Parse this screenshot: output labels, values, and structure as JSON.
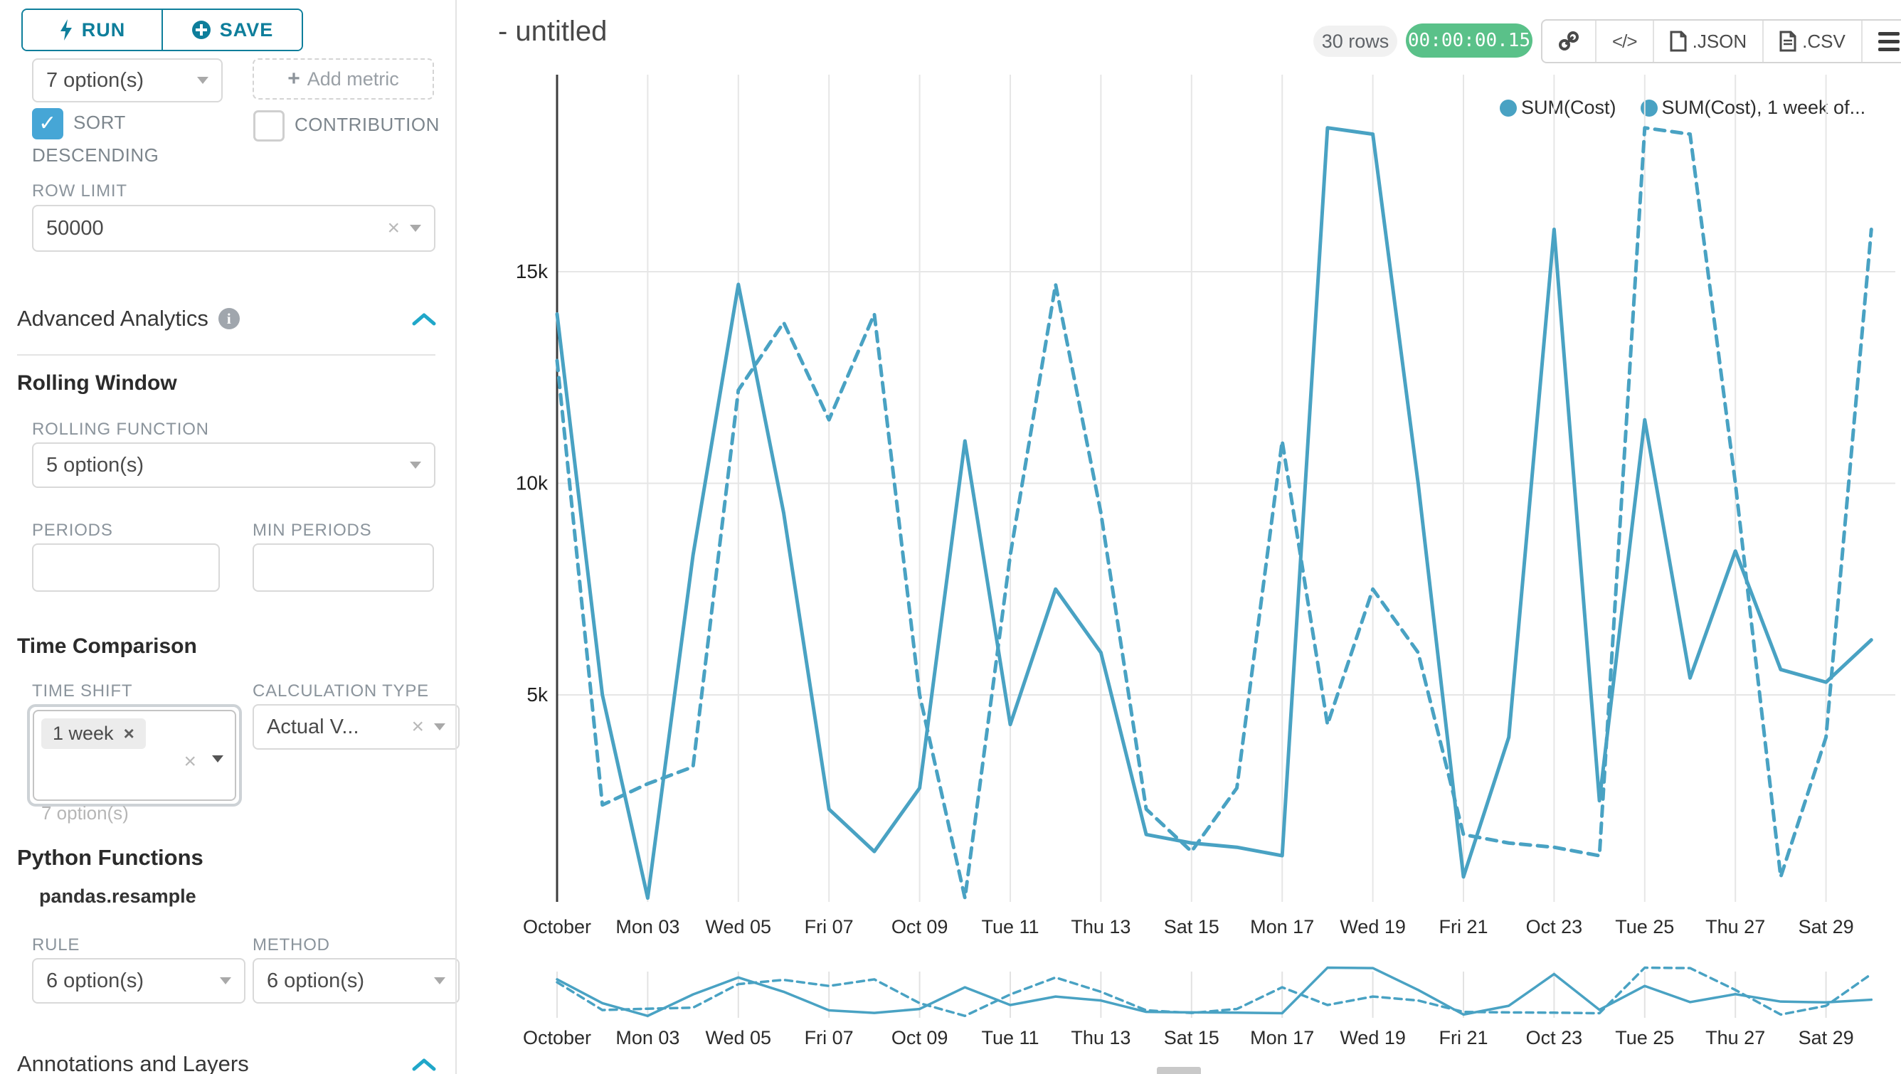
{
  "sidebar": {
    "run_label": "RUN",
    "save_label": "SAVE",
    "groupby_value": "7 option(s)",
    "add_metric_label": "Add metric",
    "sort_descending_label": "SORT DESCENDING",
    "contribution_label": "CONTRIBUTION",
    "row_limit_label": "ROW LIMIT",
    "row_limit_value": "50000",
    "advanced_analytics_title": "Advanced Analytics",
    "rolling_window": {
      "title": "Rolling Window",
      "rolling_function_label": "ROLLING FUNCTION",
      "rolling_function_value": "5 option(s)",
      "periods_label": "PERIODS",
      "min_periods_label": "MIN PERIODS"
    },
    "time_comparison": {
      "title": "Time Comparison",
      "time_shift_label": "TIME SHIFT",
      "time_shift_tag": "1 week",
      "time_shift_helper": "7 option(s)",
      "calculation_type_label": "CALCULATION TYPE",
      "calculation_type_value": "Actual V..."
    },
    "python_functions": {
      "title": "Python Functions",
      "subtitle": "pandas.resample",
      "rule_label": "RULE",
      "rule_value": "6 option(s)",
      "method_label": "METHOD",
      "method_value": "6 option(s)"
    },
    "annotations_title": "Annotations and Layers"
  },
  "header": {
    "title": "- untitled",
    "rows_badge": "30 rows",
    "timer_badge": "00:00:00.15",
    "json_label": ".JSON",
    "csv_label": ".CSV"
  },
  "chart_data": {
    "type": "line",
    "title": "",
    "x_start": "October 01",
    "num_points": 30,
    "x_tick_labels": [
      "October",
      "Mon 03",
      "Wed 05",
      "Fri 07",
      "Oct 09",
      "Tue 11",
      "Thu 13",
      "Sat 15",
      "Mon 17",
      "Wed 19",
      "Fri 21",
      "Oct 23",
      "Tue 25",
      "Thu 27",
      "Sat 29"
    ],
    "y_tick_labels": [
      "5k",
      "10k",
      "15k"
    ],
    "y_ticks": [
      5000,
      10000,
      15000
    ],
    "ylim": [
      0,
      19600
    ],
    "grid": true,
    "legend_position": "top-right",
    "line_color": "#49a2c3",
    "series": [
      {
        "name": "SUM(Cost)",
        "legend_label": "SUM(Cost)",
        "style": "solid",
        "values": [
          14000,
          5000,
          200,
          8300,
          14700,
          9300,
          2300,
          1300,
          2800,
          11000,
          4300,
          7500,
          6000,
          1700,
          1500,
          1400,
          1200,
          18400,
          18250,
          10000,
          700,
          4000,
          16000,
          2500,
          11500,
          5400,
          8400,
          5600,
          5300,
          6300
        ]
      },
      {
        "name": "SUM(Cost), 1 week offset",
        "legend_label": "SUM(Cost), 1 week of...",
        "style": "dashed",
        "values": [
          12900,
          2400,
          2900,
          3300,
          12200,
          13800,
          11500,
          14000,
          5000,
          200,
          8300,
          14700,
          9300,
          2300,
          1300,
          2800,
          11000,
          4300,
          7500,
          6000,
          1700,
          1500,
          1400,
          1200,
          18400,
          18250,
          10000,
          700,
          4000,
          16000
        ]
      }
    ],
    "context_chart": {
      "present": true,
      "same_series": true,
      "x_tick_labels_repeated": true
    }
  }
}
